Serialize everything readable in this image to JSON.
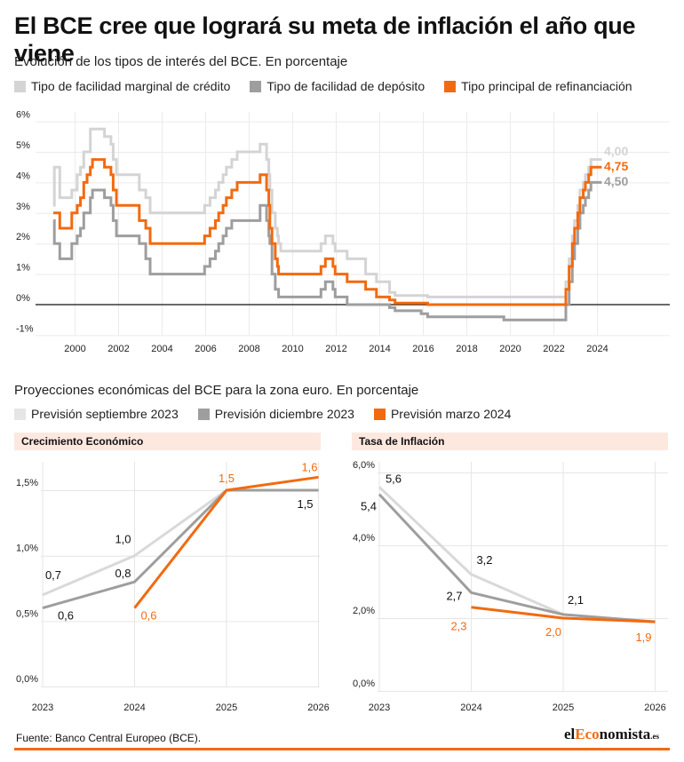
{
  "title": "El BCE cree que logrará su meta de inflación el año que viene",
  "rates": {
    "subtitle": "Evolución de los tipos de interés del BCE. En porcentaje",
    "legend": [
      {
        "label": "Tipo de facilidad marginal de crédito",
        "color": "#d4d4d4"
      },
      {
        "label": "Tipo de facilidad de depósito",
        "color": "#9e9e9e"
      },
      {
        "label": "Tipo principal de refinanciación",
        "color": "#f26a10"
      }
    ],
    "end_labels": [
      "4,00",
      "4,75",
      "4,50"
    ]
  },
  "projections": {
    "subtitle": "Proyecciones económicas del BCE para la zona euro. En porcentaje",
    "legend": [
      {
        "label": "Previsión septiembre 2023",
        "color": "#e6e6e6"
      },
      {
        "label": "Previsión diciembre 2023",
        "color": "#9e9e9e"
      },
      {
        "label": "Previsión marzo 2024",
        "color": "#f26a10"
      }
    ],
    "growth_title": "Crecimiento Económico",
    "inflation_title": "Tasa de Inflación"
  },
  "chart_data": [
    {
      "type": "line",
      "step": true,
      "x_ticks": [
        "2000",
        "2002",
        "2004",
        "2006",
        "2008",
        "2010",
        "2012",
        "2014",
        "2016",
        "2018",
        "2020",
        "2022",
        "2024"
      ],
      "y_ticks": [
        "6%",
        "5%",
        "4%",
        "3%",
        "2%",
        "1%",
        "0%",
        "-1%"
      ],
      "ylim": [
        -1,
        6
      ],
      "xlim": [
        1999,
        2026
      ],
      "series": [
        {
          "name": "Tipo de facilidad marginal de crédito",
          "color": "#d4d4d4",
          "points": [
            [
              1999.0,
              3.25
            ],
            [
              1999.05,
              4.5
            ],
            [
              1999.3,
              3.5
            ],
            [
              1999.85,
              3.75
            ],
            [
              2000.1,
              4.25
            ],
            [
              2000.25,
              4.5
            ],
            [
              2000.4,
              5.0
            ],
            [
              2000.7,
              5.75
            ],
            [
              2001.35,
              5.5
            ],
            [
              2001.65,
              5.25
            ],
            [
              2001.75,
              4.75
            ],
            [
              2001.9,
              4.25
            ],
            [
              2002.95,
              3.75
            ],
            [
              2003.25,
              3.5
            ],
            [
              2003.45,
              3.0
            ],
            [
              2005.95,
              3.25
            ],
            [
              2006.2,
              3.5
            ],
            [
              2006.45,
              3.75
            ],
            [
              2006.6,
              4.0
            ],
            [
              2006.8,
              4.25
            ],
            [
              2006.95,
              4.5
            ],
            [
              2007.2,
              4.75
            ],
            [
              2007.45,
              5.0
            ],
            [
              2008.5,
              5.25
            ],
            [
              2008.8,
              4.75
            ],
            [
              2008.9,
              4.25
            ],
            [
              2008.95,
              3.75
            ],
            [
              2009.05,
              3.0
            ],
            [
              2009.2,
              2.5
            ],
            [
              2009.3,
              2.25
            ],
            [
              2009.35,
              2.0
            ],
            [
              2009.45,
              1.75
            ],
            [
              2011.3,
              2.0
            ],
            [
              2011.5,
              2.25
            ],
            [
              2011.85,
              2.0
            ],
            [
              2011.95,
              1.75
            ],
            [
              2012.5,
              1.5
            ],
            [
              2013.35,
              1.0
            ],
            [
              2013.85,
              0.75
            ],
            [
              2014.45,
              0.4
            ],
            [
              2014.7,
              0.3
            ],
            [
              2016.2,
              0.25
            ],
            [
              2022.55,
              0.75
            ],
            [
              2022.7,
              1.5
            ],
            [
              2022.85,
              2.25
            ],
            [
              2022.95,
              2.75
            ],
            [
              2023.1,
              3.25
            ],
            [
              2023.2,
              3.75
            ],
            [
              2023.35,
              4.0
            ],
            [
              2023.45,
              4.25
            ],
            [
              2023.6,
              4.5
            ],
            [
              2023.7,
              4.75
            ],
            [
              2024.2,
              4.75
            ]
          ]
        },
        {
          "name": "Tipo de facilidad de depósito",
          "color": "#9e9e9e",
          "points": [
            [
              1999.0,
              2.75
            ],
            [
              1999.05,
              2.0
            ],
            [
              1999.3,
              1.5
            ],
            [
              1999.85,
              2.0
            ],
            [
              2000.1,
              2.25
            ],
            [
              2000.25,
              2.5
            ],
            [
              2000.4,
              3.0
            ],
            [
              2000.7,
              3.5
            ],
            [
              2000.8,
              3.75
            ],
            [
              2001.35,
              3.5
            ],
            [
              2001.65,
              3.25
            ],
            [
              2001.75,
              2.75
            ],
            [
              2001.9,
              2.25
            ],
            [
              2002.95,
              2.0
            ],
            [
              2003.25,
              1.5
            ],
            [
              2003.45,
              1.0
            ],
            [
              2005.95,
              1.25
            ],
            [
              2006.2,
              1.5
            ],
            [
              2006.45,
              1.75
            ],
            [
              2006.6,
              2.0
            ],
            [
              2006.8,
              2.25
            ],
            [
              2006.95,
              2.5
            ],
            [
              2007.2,
              2.75
            ],
            [
              2008.5,
              3.25
            ],
            [
              2008.8,
              2.75
            ],
            [
              2008.9,
              2.25
            ],
            [
              2008.95,
              2.0
            ],
            [
              2009.05,
              1.0
            ],
            [
              2009.2,
              0.5
            ],
            [
              2009.35,
              0.25
            ],
            [
              2011.3,
              0.5
            ],
            [
              2011.5,
              0.75
            ],
            [
              2011.85,
              0.5
            ],
            [
              2011.95,
              0.25
            ],
            [
              2012.5,
              0.0
            ],
            [
              2014.45,
              -0.1
            ],
            [
              2014.7,
              -0.2
            ],
            [
              2015.9,
              -0.3
            ],
            [
              2016.2,
              -0.4
            ],
            [
              2019.7,
              -0.5
            ],
            [
              2022.55,
              0.0
            ],
            [
              2022.7,
              0.75
            ],
            [
              2022.85,
              1.5
            ],
            [
              2022.95,
              2.0
            ],
            [
              2023.1,
              2.5
            ],
            [
              2023.2,
              3.0
            ],
            [
              2023.35,
              3.25
            ],
            [
              2023.45,
              3.5
            ],
            [
              2023.6,
              3.75
            ],
            [
              2023.7,
              4.0
            ],
            [
              2024.2,
              4.0
            ]
          ]
        },
        {
          "name": "Tipo principal de refinanciación",
          "color": "#f26a10",
          "points": [
            [
              1999.0,
              3.0
            ],
            [
              1999.3,
              2.5
            ],
            [
              1999.85,
              3.0
            ],
            [
              2000.1,
              3.25
            ],
            [
              2000.25,
              3.5
            ],
            [
              2000.4,
              4.0
            ],
            [
              2000.55,
              4.25
            ],
            [
              2000.7,
              4.5
            ],
            [
              2000.8,
              4.75
            ],
            [
              2001.35,
              4.5
            ],
            [
              2001.65,
              4.25
            ],
            [
              2001.75,
              3.75
            ],
            [
              2001.9,
              3.25
            ],
            [
              2002.95,
              2.75
            ],
            [
              2003.25,
              2.5
            ],
            [
              2003.45,
              2.0
            ],
            [
              2005.95,
              2.25
            ],
            [
              2006.2,
              2.5
            ],
            [
              2006.45,
              2.75
            ],
            [
              2006.6,
              3.0
            ],
            [
              2006.8,
              3.25
            ],
            [
              2006.95,
              3.5
            ],
            [
              2007.2,
              3.75
            ],
            [
              2007.45,
              4.0
            ],
            [
              2008.5,
              4.25
            ],
            [
              2008.8,
              3.75
            ],
            [
              2008.9,
              3.25
            ],
            [
              2008.95,
              2.5
            ],
            [
              2009.05,
              2.0
            ],
            [
              2009.2,
              1.5
            ],
            [
              2009.3,
              1.25
            ],
            [
              2009.35,
              1.0
            ],
            [
              2011.3,
              1.25
            ],
            [
              2011.5,
              1.5
            ],
            [
              2011.85,
              1.25
            ],
            [
              2011.95,
              1.0
            ],
            [
              2012.5,
              0.75
            ],
            [
              2013.35,
              0.5
            ],
            [
              2013.85,
              0.25
            ],
            [
              2014.45,
              0.15
            ],
            [
              2014.7,
              0.05
            ],
            [
              2016.2,
              0.0
            ],
            [
              2022.55,
              0.5
            ],
            [
              2022.7,
              1.25
            ],
            [
              2022.85,
              2.0
            ],
            [
              2022.95,
              2.5
            ],
            [
              2023.1,
              3.0
            ],
            [
              2023.2,
              3.5
            ],
            [
              2023.35,
              3.75
            ],
            [
              2023.45,
              4.0
            ],
            [
              2023.6,
              4.25
            ],
            [
              2023.7,
              4.5
            ],
            [
              2024.2,
              4.5
            ]
          ]
        }
      ]
    },
    {
      "type": "line",
      "title": "Crecimiento Económico",
      "categories": [
        "2023",
        "2024",
        "2025",
        "2026"
      ],
      "y_ticks": [
        "1,5%",
        "1,0%",
        "0,5%",
        "0,0%"
      ],
      "ylim": [
        0,
        1.75
      ],
      "series": [
        {
          "name": "Previsión septiembre 2023",
          "color": "#d9d9d9",
          "values": [
            0.7,
            1.0,
            1.5,
            null
          ],
          "labels": [
            "0,7",
            "1,0",
            "",
            ""
          ]
        },
        {
          "name": "Previsión diciembre 2023",
          "color": "#9e9e9e",
          "values": [
            0.6,
            0.8,
            1.5,
            1.5
          ],
          "labels": [
            "0,6",
            "0,8",
            "",
            "1,5"
          ]
        },
        {
          "name": "Previsión marzo 2024",
          "color": "#f26a10",
          "values": [
            null,
            0.6,
            1.5,
            1.6
          ],
          "labels": [
            "",
            "0,6",
            "1,5",
            "1,6"
          ]
        }
      ]
    },
    {
      "type": "line",
      "title": "Tasa de Inflación",
      "categories": [
        "2023",
        "2024",
        "2025",
        "2026"
      ],
      "y_ticks": [
        "6,0%",
        "4,0%",
        "2,0%",
        "0,0%"
      ],
      "ylim": [
        0,
        6.3
      ],
      "series": [
        {
          "name": "Previsión septiembre 2023",
          "color": "#d9d9d9",
          "values": [
            5.6,
            3.2,
            2.1,
            null
          ],
          "labels": [
            "5,6",
            "3,2",
            "2,1",
            ""
          ]
        },
        {
          "name": "Previsión diciembre 2023",
          "color": "#9e9e9e",
          "values": [
            5.4,
            2.7,
            2.1,
            1.9
          ],
          "labels": [
            "5,4",
            "2,7",
            "",
            ""
          ]
        },
        {
          "name": "Previsión marzo 2024",
          "color": "#f26a10",
          "values": [
            null,
            2.3,
            2.0,
            1.9
          ],
          "labels": [
            "",
            "2,3",
            "2,0",
            "1,9"
          ]
        }
      ]
    }
  ],
  "footer": {
    "source": "Fuente: Banco Central Europeo (BCE).",
    "logo_prefix": "el",
    "logo_accent": "Eco",
    "logo_suffix": "nomista",
    "logo_tld": ".es"
  }
}
